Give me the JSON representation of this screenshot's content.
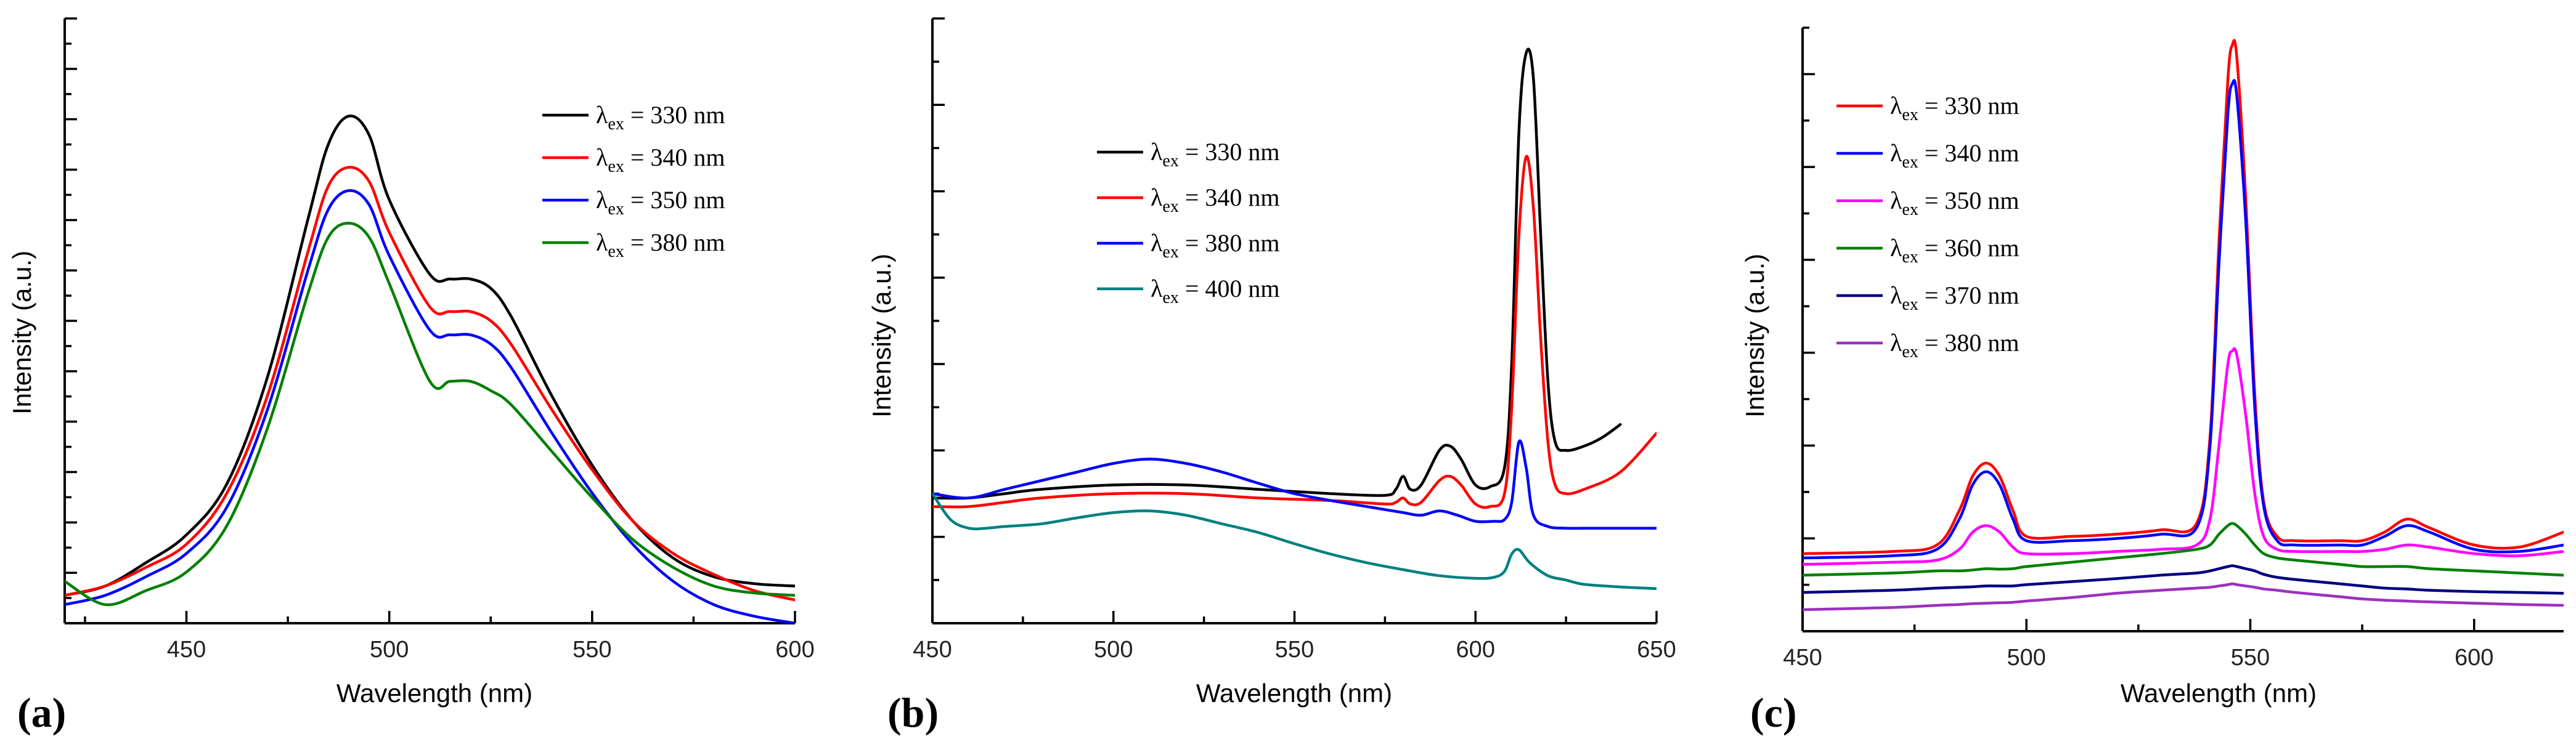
{
  "chart_data": [
    {
      "panel_label": "(a)",
      "type": "line",
      "title": "",
      "xlabel": "Wavelength (nm)",
      "ylabel": "Intensity (a.u.)",
      "xlim": [
        420,
        600
      ],
      "ylim": [
        -0.5,
        12.5
      ],
      "xticks": [
        450,
        500,
        550,
        600
      ],
      "legend": {
        "position": "top-right",
        "entries": [
          {
            "pre": "λ",
            "sub": "ex",
            "post": " = 330 nm"
          },
          {
            "pre": "λ",
            "sub": "ex",
            "post": " = 340 nm"
          },
          {
            "pre": "λ",
            "sub": "ex",
            "post": " = 350 nm"
          },
          {
            "pre": "λ",
            "sub": "ex",
            "post": " = 380 nm"
          }
        ]
      },
      "x": [
        420,
        430,
        440,
        450,
        460,
        470,
        480,
        485,
        490,
        495,
        500,
        510,
        515,
        520,
        525,
        530,
        540,
        550,
        560,
        570,
        580,
        590,
        600
      ],
      "series": [
        {
          "name": "λex = 330 nm",
          "color": "#000000",
          "values": [
            0.1,
            0.3,
            0.8,
            1.4,
            2.5,
            4.8,
            8.2,
            9.8,
            10.4,
            10.0,
            8.6,
            7.0,
            6.9,
            6.9,
            6.7,
            6.1,
            4.4,
            2.9,
            1.7,
            0.9,
            0.5,
            0.35,
            0.3
          ]
        },
        {
          "name": "λex = 340 nm",
          "color": "#ff0000",
          "values": [
            0.1,
            0.3,
            0.7,
            1.2,
            2.3,
            4.4,
            7.5,
            8.9,
            9.3,
            9.0,
            7.9,
            6.3,
            6.2,
            6.2,
            6.0,
            5.5,
            4.1,
            2.8,
            1.7,
            1.0,
            0.55,
            0.2,
            0.0
          ]
        },
        {
          "name": "λex = 350 nm",
          "color": "#0000ff",
          "values": [
            -0.1,
            0.1,
            0.5,
            1.0,
            2.0,
            4.1,
            7.1,
            8.4,
            8.8,
            8.5,
            7.4,
            5.8,
            5.7,
            5.7,
            5.5,
            5.0,
            3.6,
            2.3,
            1.2,
            0.4,
            -0.1,
            -0.35,
            -0.5
          ]
        },
        {
          "name": "λex = 380 nm",
          "color": "#008000",
          "values": [
            0.4,
            -0.1,
            0.2,
            0.6,
            1.6,
            3.7,
            6.6,
            7.8,
            8.1,
            7.8,
            6.8,
            4.7,
            4.7,
            4.7,
            4.5,
            4.2,
            3.2,
            2.2,
            1.3,
            0.7,
            0.3,
            0.15,
            0.1
          ]
        }
      ]
    },
    {
      "panel_label": "(b)",
      "type": "line",
      "title": "",
      "xlabel": "Wavelength (nm)",
      "ylabel": "Intensity (a.u.)",
      "xlim": [
        450,
        650
      ],
      "ylim": [
        -0.5,
        6.5
      ],
      "xticks": [
        450,
        500,
        550,
        600,
        650
      ],
      "legend": {
        "position": "top-center",
        "entries": [
          {
            "pre": "λ",
            "sub": "ex",
            "post": " = 330 nm"
          },
          {
            "pre": "λ",
            "sub": "ex",
            "post": " = 340 nm"
          },
          {
            "pre": "λ",
            "sub": "ex",
            "post": " = 380 nm"
          },
          {
            "pre": "λ",
            "sub": "ex",
            "post": " = 400 nm"
          }
        ]
      },
      "series": [
        {
          "name": "λex = 330 nm",
          "color": "#000000",
          "x": [
            450,
            460,
            470,
            480,
            500,
            520,
            540,
            560,
            575,
            578,
            580,
            582,
            585,
            590,
            593,
            596,
            600,
            604,
            608,
            610,
            612,
            614,
            616,
            618,
            620,
            622,
            625,
            630,
            635,
            640
          ],
          "values": [
            0.95,
            0.95,
            1.0,
            1.05,
            1.1,
            1.1,
            1.05,
            1.0,
            0.98,
            1.05,
            1.2,
            1.05,
            1.1,
            1.5,
            1.55,
            1.4,
            1.1,
            1.08,
            1.3,
            2.5,
            5.2,
            6.1,
            5.8,
            4.0,
            2.3,
            1.6,
            1.5,
            1.55,
            1.65,
            1.8
          ]
        },
        {
          "name": "λex = 340 nm",
          "color": "#ff0000",
          "x": [
            450,
            460,
            470,
            480,
            500,
            520,
            540,
            560,
            575,
            578,
            580,
            582,
            585,
            590,
            593,
            596,
            600,
            604,
            608,
            610,
            612,
            614,
            616,
            618,
            620,
            622,
            625,
            630,
            640,
            650
          ],
          "values": [
            0.85,
            0.85,
            0.9,
            0.95,
            1.0,
            1.0,
            0.95,
            0.92,
            0.88,
            0.9,
            0.95,
            0.88,
            0.9,
            1.15,
            1.2,
            1.1,
            0.88,
            0.85,
            1.0,
            2.0,
            4.0,
            4.9,
            4.3,
            2.8,
            1.6,
            1.1,
            1.0,
            1.05,
            1.25,
            1.7
          ]
        },
        {
          "name": "λex = 380 nm",
          "color": "#0000ff",
          "x": [
            450,
            460,
            470,
            480,
            490,
            500,
            510,
            520,
            530,
            540,
            550,
            560,
            570,
            580,
            585,
            590,
            595,
            600,
            605,
            608,
            610,
            612,
            614,
            616,
            620,
            625,
            630,
            640,
            650
          ],
          "values": [
            1.0,
            0.95,
            1.05,
            1.15,
            1.25,
            1.35,
            1.4,
            1.35,
            1.25,
            1.12,
            1.0,
            0.92,
            0.85,
            0.78,
            0.75,
            0.8,
            0.75,
            0.68,
            0.68,
            0.7,
            0.9,
            1.6,
            1.3,
            0.75,
            0.62,
            0.6,
            0.6,
            0.6,
            0.6
          ]
        },
        {
          "name": "λex = 400 nm",
          "color": "#008080",
          "x": [
            450,
            455,
            460,
            465,
            470,
            480,
            490,
            500,
            510,
            520,
            530,
            540,
            550,
            560,
            570,
            580,
            590,
            600,
            605,
            608,
            610,
            612,
            615,
            620,
            625,
            630,
            640,
            650
          ],
          "values": [
            1.0,
            0.7,
            0.6,
            0.6,
            0.62,
            0.65,
            0.72,
            0.78,
            0.8,
            0.75,
            0.65,
            0.55,
            0.42,
            0.3,
            0.2,
            0.12,
            0.05,
            0.02,
            0.03,
            0.1,
            0.3,
            0.35,
            0.2,
            0.05,
            0.0,
            -0.05,
            -0.08,
            -0.1
          ]
        }
      ]
    },
    {
      "panel_label": "(c)",
      "type": "line",
      "title": "",
      "xlabel": "Wavelength (nm)",
      "ylabel": "Intensity (a.u.)",
      "xlim": [
        450,
        620
      ],
      "ylim": [
        -1,
        13
      ],
      "xticks": [
        450,
        500,
        550,
        600
      ],
      "legend": {
        "position": "top-left",
        "entries": [
          {
            "pre": "λ",
            "sub": "ex",
            "post": " = 330 nm"
          },
          {
            "pre": "λ",
            "sub": "ex",
            "post": " = 340 nm"
          },
          {
            "pre": "λ",
            "sub": "ex",
            "post": " = 350 nm"
          },
          {
            "pre": "λ",
            "sub": "ex",
            "post": " = 360 nm"
          },
          {
            "pre": "λ",
            "sub": "ex",
            "post": " = 370 nm"
          },
          {
            "pre": "λ",
            "sub": "ex",
            "post": " = 380 nm"
          }
        ]
      },
      "x": [
        450,
        470,
        480,
        485,
        488,
        491,
        494,
        497,
        500,
        510,
        520,
        530,
        538,
        541,
        543,
        545,
        546,
        547,
        549,
        551,
        553,
        556,
        560,
        570,
        575,
        580,
        585,
        590,
        600,
        610,
        620
      ],
      "series": [
        {
          "name": "λex = 330 nm",
          "color": "#ff0000",
          "values": [
            0.8,
            0.85,
            1.0,
            1.8,
            2.6,
            2.9,
            2.6,
            1.8,
            1.2,
            1.2,
            1.25,
            1.35,
            1.5,
            3.5,
            8.0,
            11.8,
            12.6,
            12.3,
            9.0,
            4.5,
            2.0,
            1.2,
            1.1,
            1.1,
            1.1,
            1.3,
            1.6,
            1.4,
            1.0,
            0.95,
            1.3
          ]
        },
        {
          "name": "λex = 340 nm",
          "color": "#0000ff",
          "values": [
            0.7,
            0.75,
            0.9,
            1.6,
            2.4,
            2.7,
            2.4,
            1.6,
            1.1,
            1.1,
            1.15,
            1.25,
            1.4,
            3.3,
            7.5,
            11.0,
            11.7,
            11.4,
            8.5,
            4.2,
            1.9,
            1.1,
            1.0,
            1.0,
            1.0,
            1.2,
            1.45,
            1.3,
            0.9,
            0.85,
            1.0
          ]
        },
        {
          "name": "λex = 350 nm",
          "color": "#ff00ff",
          "values": [
            0.55,
            0.6,
            0.65,
            0.9,
            1.3,
            1.45,
            1.3,
            0.95,
            0.8,
            0.8,
            0.85,
            0.9,
            1.0,
            1.6,
            3.3,
            5.2,
            5.5,
            5.4,
            4.0,
            2.2,
            1.2,
            0.9,
            0.85,
            0.85,
            0.85,
            0.9,
            1.0,
            0.95,
            0.8,
            0.75,
            0.85
          ]
        },
        {
          "name": "λex = 360 nm",
          "color": "#008000",
          "values": [
            0.3,
            0.35,
            0.4,
            0.4,
            0.42,
            0.45,
            0.44,
            0.45,
            0.5,
            0.6,
            0.7,
            0.8,
            0.9,
            1.0,
            1.25,
            1.45,
            1.5,
            1.45,
            1.25,
            1.0,
            0.8,
            0.7,
            0.65,
            0.55,
            0.5,
            0.5,
            0.5,
            0.45,
            0.4,
            0.35,
            0.3
          ]
        },
        {
          "name": "λex = 370 nm",
          "color": "#000080",
          "values": [
            -0.1,
            -0.05,
            0.0,
            0.02,
            0.03,
            0.05,
            0.05,
            0.05,
            0.08,
            0.15,
            0.22,
            0.3,
            0.35,
            0.4,
            0.45,
            0.5,
            0.52,
            0.5,
            0.45,
            0.4,
            0.32,
            0.25,
            0.2,
            0.1,
            0.05,
            0.0,
            -0.02,
            -0.05,
            -0.08,
            -0.1,
            -0.12
          ]
        },
        {
          "name": "λex = 380 nm",
          "color": "#9b30c0",
          "values": [
            -0.5,
            -0.45,
            -0.4,
            -0.38,
            -0.36,
            -0.35,
            -0.34,
            -0.33,
            -0.3,
            -0.22,
            -0.12,
            -0.05,
            0.0,
            0.02,
            0.05,
            0.08,
            0.1,
            0.08,
            0.05,
            0.02,
            -0.02,
            -0.05,
            -0.1,
            -0.2,
            -0.25,
            -0.28,
            -0.3,
            -0.32,
            -0.35,
            -0.38,
            -0.4
          ]
        }
      ]
    }
  ]
}
